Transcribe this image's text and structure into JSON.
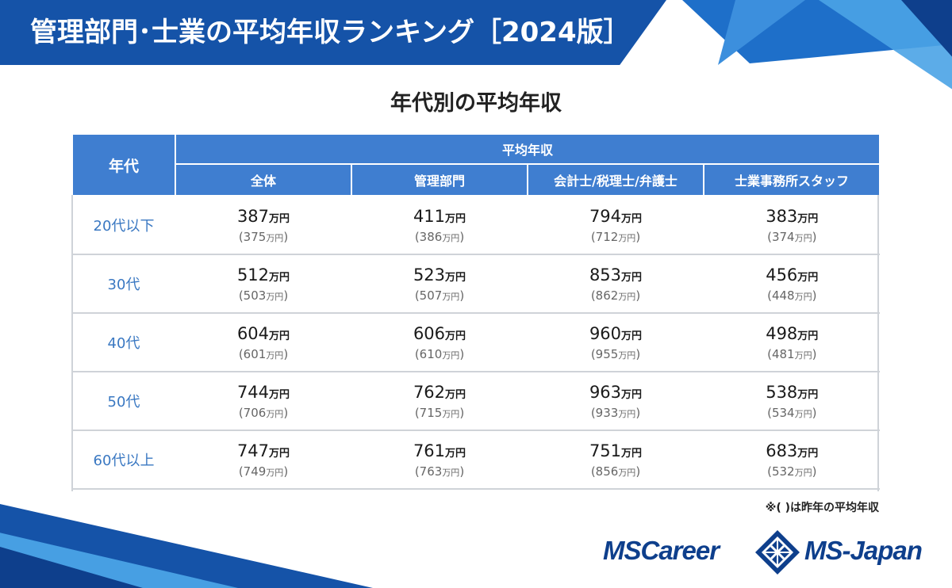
{
  "header": {
    "title": "管理部門･士業の平均年収ランキング［2024版］"
  },
  "subtitle": "年代別の平均年収",
  "table": {
    "age_header": "年代",
    "group_header": "平均年収",
    "columns": [
      "全体",
      "管理部門",
      "会計士/税理士/弁護士",
      "士業事務所スタッフ"
    ],
    "unit": "万円",
    "rows": [
      {
        "age": "20代以下",
        "values": [
          {
            "current": "387",
            "previous": "375"
          },
          {
            "current": "411",
            "previous": "386"
          },
          {
            "current": "794",
            "previous": "712"
          },
          {
            "current": "383",
            "previous": "374"
          }
        ]
      },
      {
        "age": "30代",
        "values": [
          {
            "current": "512",
            "previous": "503"
          },
          {
            "current": "523",
            "previous": "507"
          },
          {
            "current": "853",
            "previous": "862"
          },
          {
            "current": "456",
            "previous": "448"
          }
        ]
      },
      {
        "age": "40代",
        "values": [
          {
            "current": "604",
            "previous": "601"
          },
          {
            "current": "606",
            "previous": "610"
          },
          {
            "current": "960",
            "previous": "955"
          },
          {
            "current": "498",
            "previous": "481"
          }
        ]
      },
      {
        "age": "50代",
        "values": [
          {
            "current": "744",
            "previous": "706"
          },
          {
            "current": "762",
            "previous": "715"
          },
          {
            "current": "963",
            "previous": "933"
          },
          {
            "current": "538",
            "previous": "534"
          }
        ]
      },
      {
        "age": "60代以上",
        "values": [
          {
            "current": "747",
            "previous": "749"
          },
          {
            "current": "761",
            "previous": "763"
          },
          {
            "current": "751",
            "previous": "856"
          },
          {
            "current": "683",
            "previous": "532"
          }
        ]
      }
    ]
  },
  "note": "※( )は昨年の平均年収",
  "footer": {
    "logo_left": "MSCareer",
    "logo_mark_icon": "diamond-lattice-icon",
    "logo_right": "MS-Japan"
  },
  "colors": {
    "banner": "#1553a8",
    "header_cell": "#3f7ed0",
    "age_text": "#3a78c2",
    "logo": "#0e3f8c"
  }
}
